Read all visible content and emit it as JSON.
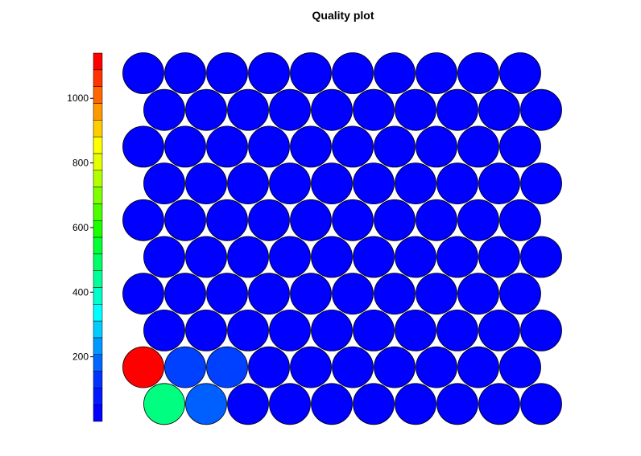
{
  "chart_data": {
    "type": "heatmap",
    "title": "Quality plot",
    "grid": {
      "columns": 10,
      "rows": 10,
      "layout": "hexagonal"
    },
    "colorbar": {
      "ticks": [
        200,
        400,
        600,
        800,
        1000
      ],
      "range": [
        0,
        1140
      ],
      "colors": [
        "#0000ff",
        "#0019ff",
        "#0033ff",
        "#0066ff",
        "#0099ff",
        "#00ccff",
        "#00ffff",
        "#00ffcc",
        "#00ff99",
        "#00ff66",
        "#00ff33",
        "#19ff00",
        "#4cff00",
        "#80ff00",
        "#b2ff00",
        "#e5ff00",
        "#ffff00",
        "#ffcc00",
        "#ff9900",
        "#ff6600",
        "#ff3300",
        "#ff0000"
      ]
    },
    "cell_colors": [
      [
        "#0000ff",
        "#0000ff",
        "#0000ff",
        "#0000ff",
        "#0000ff",
        "#0000ff",
        "#0000ff",
        "#0000ff",
        "#0000ff",
        "#0000ff"
      ],
      [
        "#0000ff",
        "#0000ff",
        "#0000ff",
        "#0000ff",
        "#0000ff",
        "#0000ff",
        "#0000ff",
        "#0000ff",
        "#0000ff",
        "#0000ff"
      ],
      [
        "#0000ff",
        "#0000ff",
        "#0000ff",
        "#0000ff",
        "#0000ff",
        "#0000ff",
        "#0000ff",
        "#0000ff",
        "#0000ff",
        "#0000ff"
      ],
      [
        "#0000ff",
        "#0000ff",
        "#0000ff",
        "#0000ff",
        "#0000ff",
        "#0000ff",
        "#0000ff",
        "#0000ff",
        "#0000ff",
        "#0000ff"
      ],
      [
        "#0000ff",
        "#0000ff",
        "#0000ff",
        "#0000ff",
        "#0000ff",
        "#0000ff",
        "#0000ff",
        "#0000ff",
        "#0000ff",
        "#0000ff"
      ],
      [
        "#0000ff",
        "#0000ff",
        "#0000ff",
        "#0000ff",
        "#0000ff",
        "#0000ff",
        "#0000ff",
        "#0000ff",
        "#0000ff",
        "#0000ff"
      ],
      [
        "#0000ff",
        "#0000ff",
        "#0000ff",
        "#0000ff",
        "#0000ff",
        "#0000ff",
        "#0000ff",
        "#0000ff",
        "#0000ff",
        "#0000ff"
      ],
      [
        "#0000ff",
        "#0000ff",
        "#0000ff",
        "#0000ff",
        "#0000ff",
        "#0000ff",
        "#0000ff",
        "#0000ff",
        "#0000ff",
        "#0000ff"
      ],
      [
        "#ff0000",
        "#0040ff",
        "#0040ff",
        "#0000ff",
        "#0000ff",
        "#0000ff",
        "#0000ff",
        "#0000ff",
        "#0000ff",
        "#0000ff"
      ],
      [
        "#00ff80",
        "#0060ff",
        "#0000ff",
        "#0000ff",
        "#0000ff",
        "#0000ff",
        "#0000ff",
        "#0000ff",
        "#0000ff",
        "#0000ff"
      ]
    ]
  }
}
